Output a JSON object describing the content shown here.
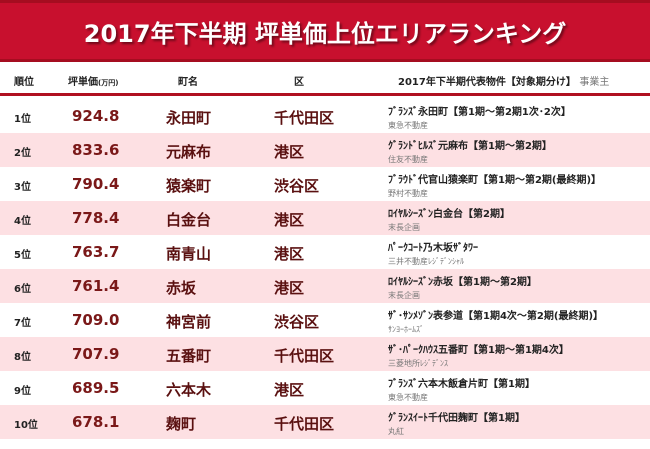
{
  "title": "2017年下半期 坪単価上位エリアランキング",
  "headers": {
    "rank": "順位",
    "price": "坪単価",
    "price_unit": "(万円)",
    "town": "町名",
    "ward": "区",
    "property": "2017年下半期代表物件【対象期分け】",
    "developer": "事業主"
  },
  "rows": [
    {
      "rank": "1位",
      "price": "924.8",
      "town": "永田町",
      "ward": "千代田区",
      "property": "ﾌﾞﾗﾝｽﾞ永田町【第1期～第2期1次･2次】",
      "developer": "東急不動産"
    },
    {
      "rank": "2位",
      "price": "833.6",
      "town": "元麻布",
      "ward": "港区",
      "property": "ｸﾞﾗﾝﾄﾞﾋﾙｽﾞ元麻布【第1期～第2期】",
      "developer": "住友不動産"
    },
    {
      "rank": "3位",
      "price": "790.4",
      "town": "猿楽町",
      "ward": "渋谷区",
      "property": "ﾌﾞﾗｳﾄﾞ代官山猿楽町【第1期～第2期(最終期)】",
      "developer": "野村不動産"
    },
    {
      "rank": "4位",
      "price": "778.4",
      "town": "白金台",
      "ward": "港区",
      "property": "ﾛｲﾔﾙｼｰｽﾞﾝ白金台【第2期】",
      "developer": "末長企画"
    },
    {
      "rank": "5位",
      "price": "763.7",
      "town": "南青山",
      "ward": "港区",
      "property": "ﾊﾟｰｸｺｰﾄ乃木坂ｻﾞﾀﾜｰ",
      "developer": "三井不動産ﾚｼﾞﾃﾞﾝｼｬﾙ"
    },
    {
      "rank": "6位",
      "price": "761.4",
      "town": "赤坂",
      "ward": "港区",
      "property": "ﾛｲﾔﾙｼｰｽﾞﾝ赤坂【第1期～第2期】",
      "developer": "末長企画"
    },
    {
      "rank": "7位",
      "price": "709.0",
      "town": "神宮前",
      "ward": "渋谷区",
      "property": "ｻﾞ･ｻﾝﾒｿﾞﾝ表参道【第1期4次～第2期(最終期)】",
      "developer": "ｻﾝﾖｰﾎｰﾑｽﾞ"
    },
    {
      "rank": "8位",
      "price": "707.9",
      "town": "五番町",
      "ward": "千代田区",
      "property": "ｻﾞ･ﾊﾟｰｸﾊｳｽ五番町【第1期～第1期4次】",
      "developer": "三菱地所ﾚｼﾞﾃﾞﾝｽ"
    },
    {
      "rank": "9位",
      "price": "689.5",
      "town": "六本木",
      "ward": "港区",
      "property": "ﾌﾞﾗﾝｽﾞ六本木飯倉片町【第1期】",
      "developer": "東急不動産"
    },
    {
      "rank": "10位",
      "price": "678.1",
      "town": "麹町",
      "ward": "千代田区",
      "property": "ｸﾞﾗﾝｽｲｰﾄ千代田麹町【第1期】",
      "developer": "丸紅"
    }
  ],
  "colors": {
    "banner": "#c8102e",
    "row_alt": "#fde0e3",
    "value": "#7a1818"
  }
}
